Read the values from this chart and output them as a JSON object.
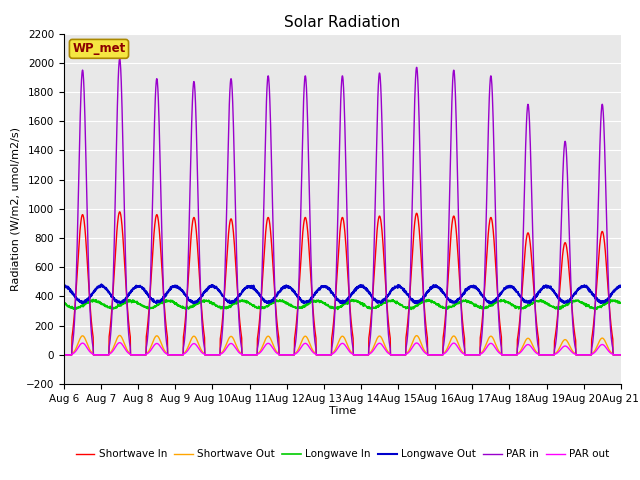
{
  "title": "Solar Radiation",
  "ylabel": "Radiation (W/m2, umol/m2/s)",
  "xlabel": "Time",
  "station_label": "WP_met",
  "ylim": [
    -200,
    2200
  ],
  "yticks": [
    -200,
    0,
    200,
    400,
    600,
    800,
    1000,
    1200,
    1400,
    1600,
    1800,
    2000,
    2200
  ],
  "x_tick_labels": [
    "Aug 6",
    "Aug 7",
    "Aug 8",
    "Aug 9",
    "Aug 10",
    "Aug 11",
    "Aug 12",
    "Aug 13",
    "Aug 14",
    "Aug 15",
    "Aug 16",
    "Aug 17",
    "Aug 18",
    "Aug 19",
    "Aug 20",
    "Aug 21"
  ],
  "colors": {
    "shortwave_in": "#ff0000",
    "shortwave_out": "#ffa500",
    "longwave_in": "#00cc00",
    "longwave_out": "#0000cc",
    "par_in": "#9900cc",
    "par_out": "#ff00ff"
  },
  "legend": [
    "Shortwave In",
    "Shortwave Out",
    "Longwave In",
    "Longwave Out",
    "PAR in",
    "PAR out"
  ],
  "axes_bg_color": "#e8e8e8",
  "fig_bg_color": "#ffffff",
  "title_fontsize": 11,
  "label_fontsize": 8,
  "tick_fontsize": 7.5
}
